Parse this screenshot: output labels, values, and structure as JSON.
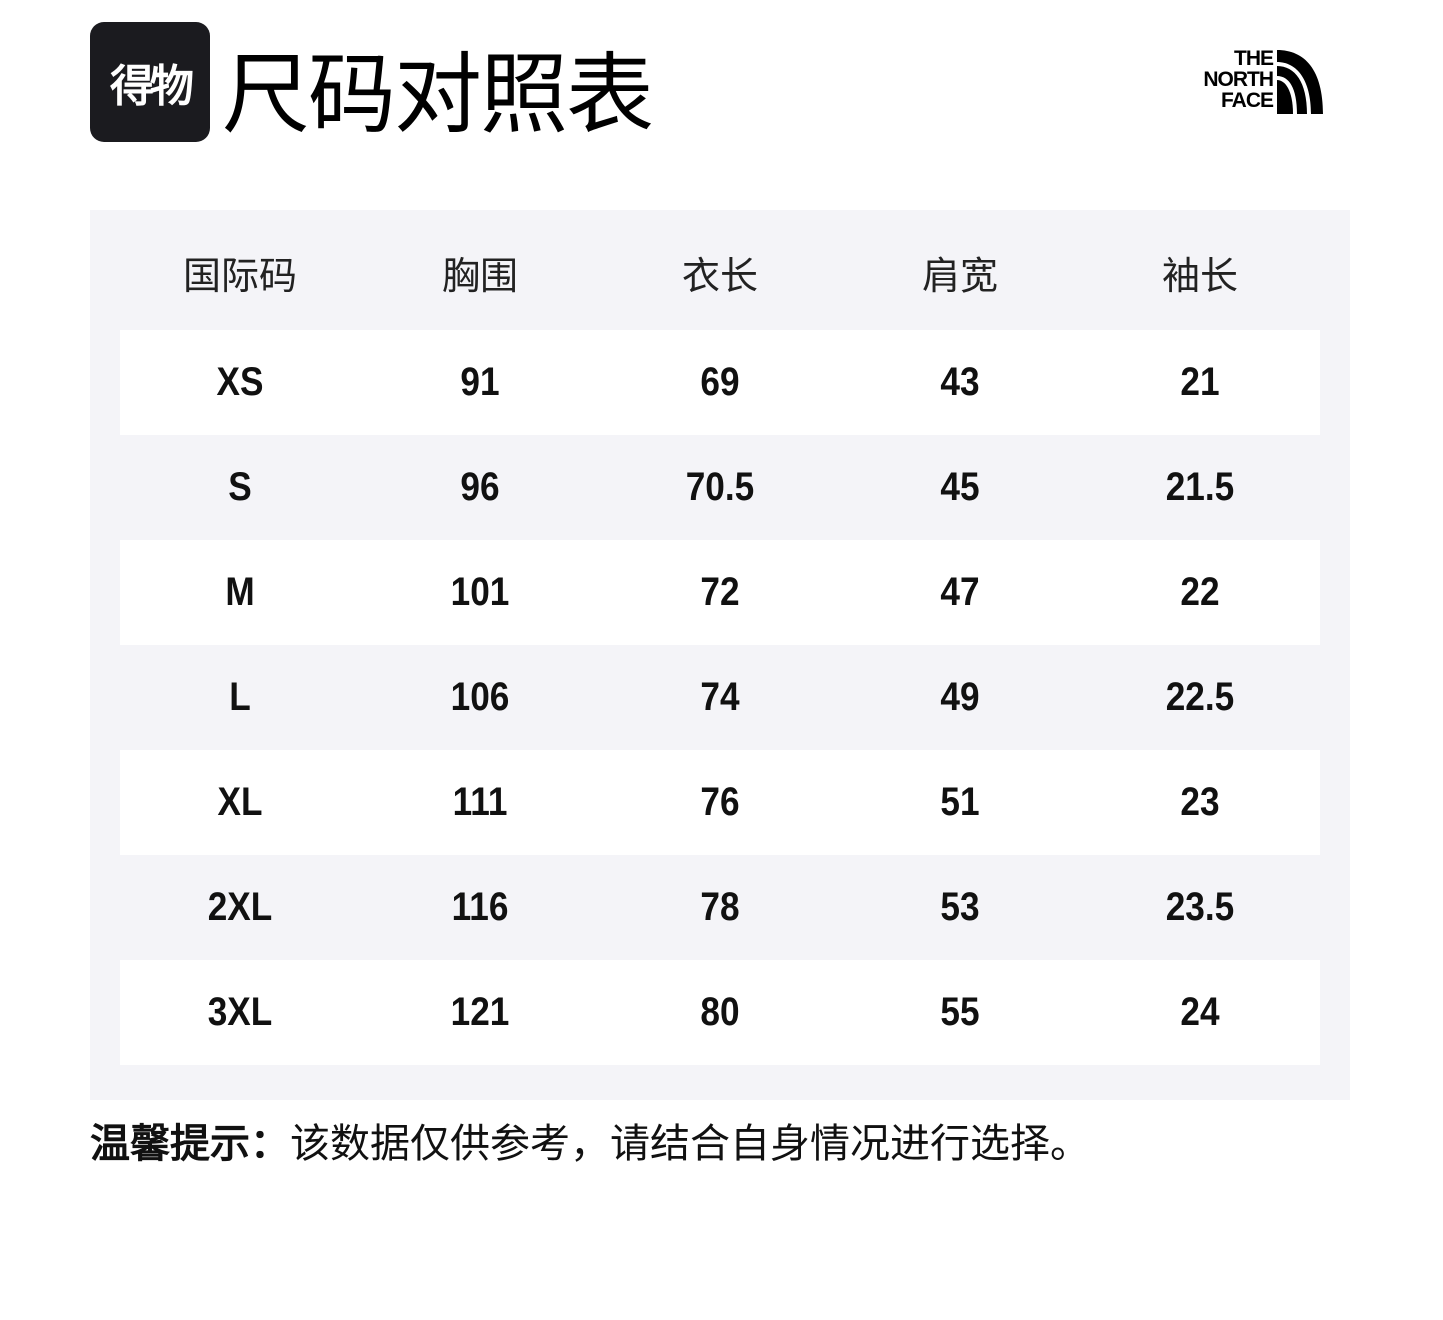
{
  "header": {
    "logo_text": "得物",
    "title": "尺码对照表",
    "brand_logo": "THE NORTH FACE"
  },
  "table": {
    "columns": [
      "国际码",
      "胸围",
      "衣长",
      "肩宽",
      "袖长"
    ],
    "rows": [
      [
        "XS",
        "91",
        "69",
        "43",
        "21"
      ],
      [
        "S",
        "96",
        "70.5",
        "45",
        "21.5"
      ],
      [
        "M",
        "101",
        "72",
        "47",
        "22"
      ],
      [
        "L",
        "106",
        "74",
        "49",
        "22.5"
      ],
      [
        "XL",
        "111",
        "76",
        "51",
        "23"
      ],
      [
        "2XL",
        "116",
        "78",
        "53",
        "23.5"
      ],
      [
        "3XL",
        "121",
        "80",
        "55",
        "24"
      ]
    ]
  },
  "note": {
    "label": "温馨提示：",
    "text": "该数据仅供参考，请结合自身情况进行选择。"
  }
}
